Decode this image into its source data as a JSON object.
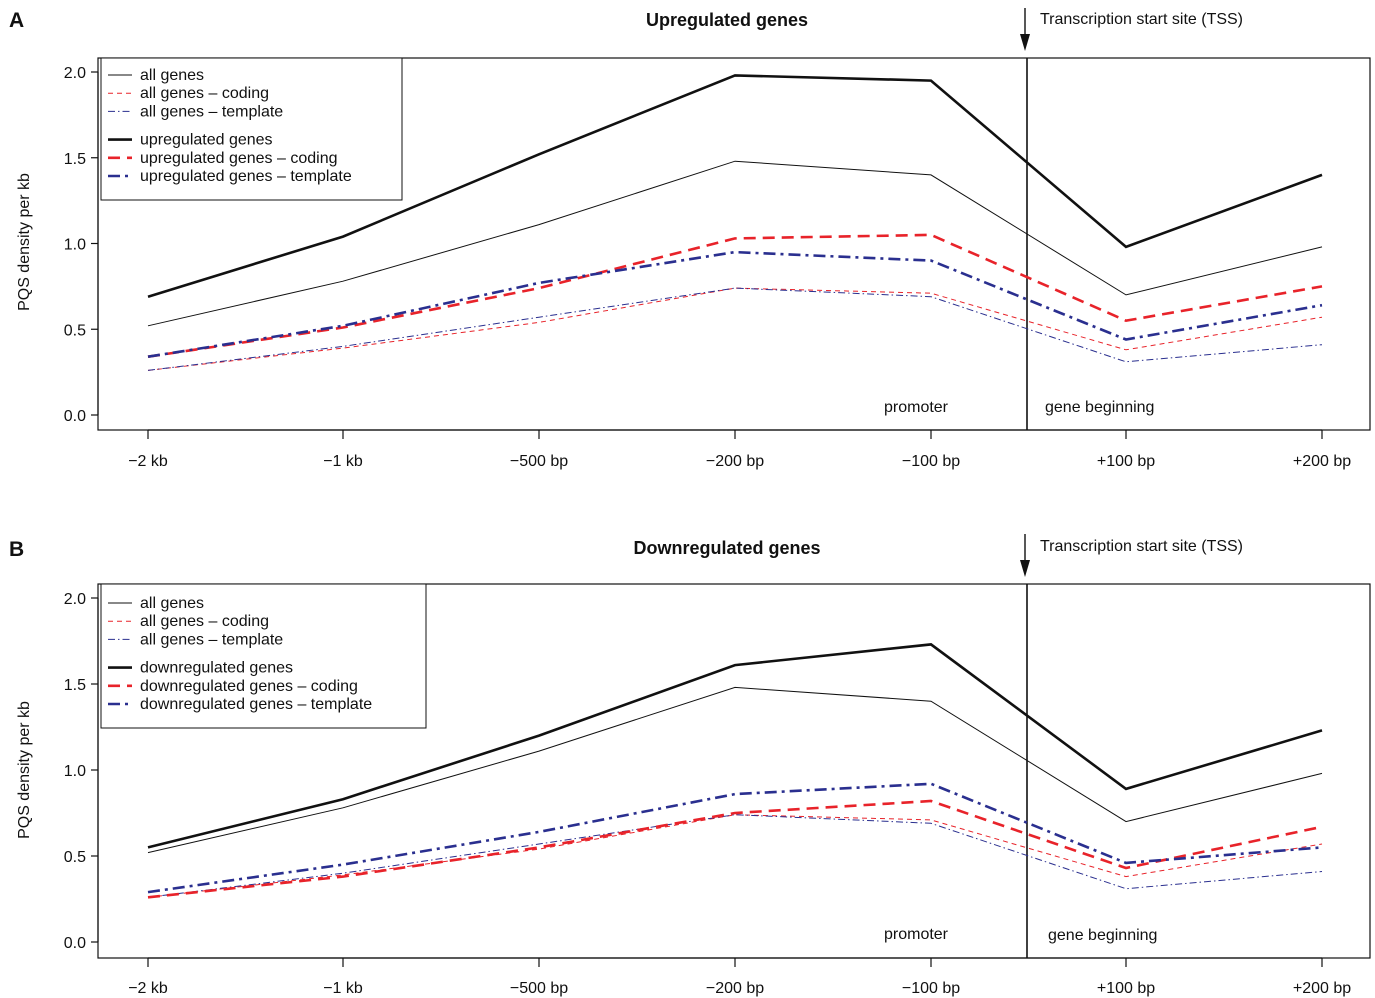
{
  "figure": {
    "background": "#ffffff",
    "colors": {
      "black": "#111111",
      "red": "#e8232a",
      "blue": "#2a2f8f"
    }
  },
  "chart_data": [
    {
      "panel": "A",
      "type": "line",
      "title": "Upregulated genes",
      "xlabel": "",
      "ylabel": "PQS density per kb",
      "categories": [
        "−2 kb",
        "−1 kb",
        "−500 bp",
        "−200 bp",
        "−100 bp",
        "+100 bp",
        "+200 bp"
      ],
      "yticks": [
        "0.0",
        "0.5",
        "1.0",
        "1.5",
        "2.0"
      ],
      "ylim": [
        0,
        2.05
      ],
      "grid": false,
      "legend_position": "top-left",
      "annotations": {
        "tss_label": "Transcription start site (TSS)",
        "left_region": "promoter",
        "right_region": "gene beginning"
      },
      "series": [
        {
          "name": "all genes",
          "color": "black",
          "style": "solid",
          "weight": "thin",
          "values": [
            0.52,
            0.78,
            1.11,
            1.48,
            1.4,
            0.7,
            0.98
          ]
        },
        {
          "name": "all genes – coding",
          "color": "red",
          "style": "dashed",
          "weight": "thin",
          "values": [
            0.26,
            0.39,
            0.54,
            0.74,
            0.71,
            0.38,
            0.57
          ]
        },
        {
          "name": "all genes – template",
          "color": "blue",
          "style": "dashdot",
          "weight": "thin",
          "values": [
            0.26,
            0.4,
            0.57,
            0.74,
            0.69,
            0.31,
            0.41
          ]
        },
        {
          "name": "upregulated genes",
          "color": "black",
          "style": "solid",
          "weight": "thick",
          "values": [
            0.69,
            1.04,
            1.52,
            1.98,
            1.95,
            0.98,
            1.4
          ]
        },
        {
          "name": "upregulated genes – coding",
          "color": "red",
          "style": "dashed",
          "weight": "thick",
          "values": [
            0.34,
            0.51,
            0.74,
            1.03,
            1.05,
            0.55,
            0.75
          ]
        },
        {
          "name": "upregulated genes – template",
          "color": "blue",
          "style": "dashdot",
          "weight": "thick",
          "values": [
            0.34,
            0.52,
            0.77,
            0.95,
            0.9,
            0.44,
            0.64
          ]
        }
      ]
    },
    {
      "panel": "B",
      "type": "line",
      "title": "Downregulated genes",
      "xlabel": "",
      "ylabel": "PQS density per kb",
      "categories": [
        "−2 kb",
        "−1 kb",
        "−500 bp",
        "−200 bp",
        "−100 bp",
        "+100 bp",
        "+200 bp"
      ],
      "yticks": [
        "0.0",
        "0.5",
        "1.0",
        "1.5",
        "2.0"
      ],
      "ylim": [
        0,
        2.05
      ],
      "grid": false,
      "legend_position": "top-left",
      "annotations": {
        "tss_label": "Transcription start site (TSS)",
        "left_region": "promoter",
        "right_region": "gene beginning"
      },
      "series": [
        {
          "name": "all genes",
          "color": "black",
          "style": "solid",
          "weight": "thin",
          "values": [
            0.52,
            0.78,
            1.11,
            1.48,
            1.4,
            0.7,
            0.98
          ]
        },
        {
          "name": "all genes – coding",
          "color": "red",
          "style": "dashed",
          "weight": "thin",
          "values": [
            0.26,
            0.39,
            0.54,
            0.74,
            0.71,
            0.38,
            0.57
          ]
        },
        {
          "name": "all genes – template",
          "color": "blue",
          "style": "dashdot",
          "weight": "thin",
          "values": [
            0.26,
            0.4,
            0.57,
            0.74,
            0.69,
            0.31,
            0.41
          ]
        },
        {
          "name": "downregulated genes",
          "color": "black",
          "style": "solid",
          "weight": "thick",
          "values": [
            0.55,
            0.83,
            1.2,
            1.61,
            1.73,
            0.89,
            1.23
          ]
        },
        {
          "name": "downregulated genes – coding",
          "color": "red",
          "style": "dashed",
          "weight": "thick",
          "values": [
            0.26,
            0.38,
            0.55,
            0.75,
            0.82,
            0.43,
            0.67
          ]
        },
        {
          "name": "downregulated genes – template",
          "color": "blue",
          "style": "dashdot",
          "weight": "thick",
          "values": [
            0.29,
            0.45,
            0.64,
            0.86,
            0.92,
            0.46,
            0.55
          ]
        }
      ]
    }
  ]
}
